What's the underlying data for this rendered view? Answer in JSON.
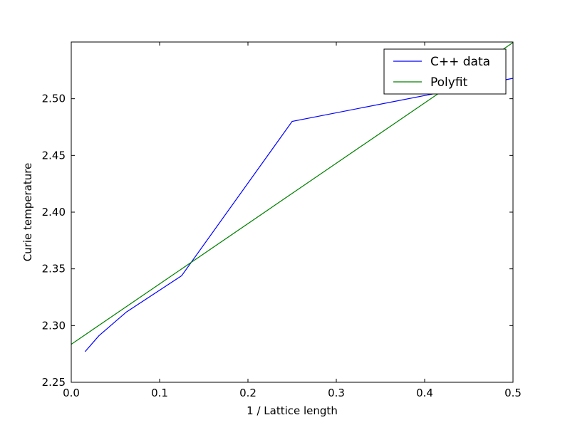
{
  "chart_data": {
    "type": "line",
    "title": "",
    "xlabel": "1 / Lattice length",
    "ylabel": "Curie temperature",
    "xlim": [
      0.0,
      0.5
    ],
    "ylim": [
      2.25,
      2.55
    ],
    "x_ticks": [
      0.0,
      0.1,
      0.2,
      0.3,
      0.4,
      0.5
    ],
    "x_tick_labels": [
      "0.0",
      "0.1",
      "0.2",
      "0.3",
      "0.4",
      "0.5"
    ],
    "y_ticks": [
      2.25,
      2.3,
      2.35,
      2.4,
      2.45,
      2.5
    ],
    "y_tick_labels": [
      "2.25",
      "2.30",
      "2.35",
      "2.40",
      "2.45",
      "2.50"
    ],
    "grid": false,
    "legend_position": "top-right",
    "series": [
      {
        "name": "C++ data",
        "color": "#0000ff",
        "x": [
          0.015625,
          0.03125,
          0.0625,
          0.125,
          0.25,
          0.5
        ],
        "y": [
          2.277,
          2.291,
          2.312,
          2.344,
          2.48,
          2.518
        ]
      },
      {
        "name": "Polyfit",
        "color": "#008000",
        "x": [
          0.0,
          0.5
        ],
        "y": [
          2.2835,
          2.5495
        ]
      }
    ]
  }
}
